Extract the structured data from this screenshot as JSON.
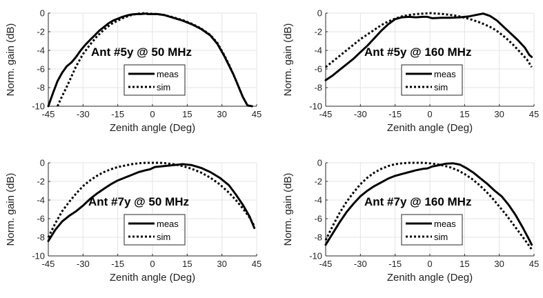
{
  "chart_data": [
    {
      "type": "line",
      "title": "",
      "annotation": "Ant #5y @ 50 MHz",
      "xlabel": "Zenith angle (Deg)",
      "ylabel": "Norm. gain (dB)",
      "xlim": [
        -45,
        45
      ],
      "ylim": [
        -10,
        0
      ],
      "xticks": [
        -45,
        -30,
        -15,
        0,
        15,
        30,
        45
      ],
      "yticks": [
        0,
        -2,
        -4,
        -6,
        -8,
        -10
      ],
      "grid": true,
      "legend": "center",
      "series": [
        {
          "name": "meas",
          "style": "solid",
          "x": [
            -45,
            -43,
            -41,
            -39,
            -37,
            -35,
            -33,
            -31,
            -29,
            -27,
            -25,
            -23,
            -21,
            -19,
            -17,
            -15,
            -13,
            -11,
            -9,
            -7,
            -5,
            -3,
            -2,
            2,
            5,
            9,
            13,
            17,
            21,
            25,
            28,
            31,
            33,
            35,
            37,
            39,
            41,
            43
          ],
          "y": [
            -10,
            -8.6,
            -7.3,
            -6.4,
            -5.7,
            -5.3,
            -4.7,
            -4.0,
            -3.4,
            -2.9,
            -2.4,
            -1.9,
            -1.5,
            -1.1,
            -0.8,
            -0.6,
            -0.4,
            -0.25,
            -0.15,
            -0.1,
            -0.1,
            -0.05,
            -0.1,
            -0.1,
            -0.2,
            -0.5,
            -0.8,
            -1.2,
            -1.7,
            -2.4,
            -3.3,
            -4.6,
            -5.6,
            -6.6,
            -7.8,
            -9.0,
            -9.9,
            -10
          ]
        },
        {
          "name": "sim",
          "style": "dotted",
          "x": [
            -41,
            -39,
            -37,
            -35,
            -33,
            -30,
            -27,
            -24,
            -21,
            -18,
            -15,
            -12,
            -9,
            -6,
            -3,
            -2,
            2,
            5,
            9,
            13,
            17,
            21,
            25,
            28,
            31,
            33,
            35,
            37,
            39,
            41,
            42
          ],
          "y": [
            -10,
            -8.9,
            -7.9,
            -6.8,
            -5.7,
            -4.4,
            -3.4,
            -2.5,
            -1.8,
            -1.2,
            -0.8,
            -0.45,
            -0.2,
            -0.05,
            0,
            -0.05,
            -0.1,
            -0.2,
            -0.45,
            -0.75,
            -1.15,
            -1.65,
            -2.35,
            -3.2,
            -4.5,
            -5.5,
            -6.6,
            -7.8,
            -9.0,
            -9.9,
            -10
          ]
        }
      ]
    },
    {
      "type": "line",
      "title": "",
      "annotation": "Ant #5y @ 160 MHz",
      "xlabel": "Zenith angle (Deg)",
      "ylabel": "Norm. gain (dB)",
      "xlim": [
        -45,
        45
      ],
      "ylim": [
        -10,
        0
      ],
      "xticks": [
        -45,
        -30,
        -15,
        0,
        15,
        30,
        45
      ],
      "yticks": [
        0,
        -2,
        -4,
        -6,
        -8,
        -10
      ],
      "grid": true,
      "legend": "center",
      "series": [
        {
          "name": "meas",
          "style": "solid",
          "x": [
            -45,
            -42,
            -39,
            -36,
            -33,
            -30,
            -27,
            -24,
            -21,
            -18,
            -15,
            -12,
            -9,
            -6,
            -3,
            -1,
            1,
            5,
            9,
            13,
            17,
            20,
            23,
            26,
            29,
            32,
            35,
            38,
            41,
            43,
            44
          ],
          "y": [
            -7.2,
            -6.7,
            -6.1,
            -5.5,
            -4.9,
            -4.2,
            -3.5,
            -2.7,
            -1.9,
            -1.2,
            -0.65,
            -0.45,
            -0.4,
            -0.45,
            -0.4,
            -0.4,
            -0.55,
            -0.5,
            -0.5,
            -0.45,
            -0.35,
            -0.2,
            -0.05,
            -0.3,
            -0.8,
            -1.5,
            -2.2,
            -2.9,
            -3.7,
            -4.5,
            -4.7
          ]
        },
        {
          "name": "sim",
          "style": "dotted",
          "x": [
            -45,
            -42,
            -39,
            -36,
            -33,
            -30,
            -27,
            -24,
            -21,
            -18,
            -15,
            -12,
            -9,
            -6,
            -3,
            0,
            3,
            6,
            9,
            12,
            15,
            18,
            21,
            24,
            27,
            30,
            33,
            36,
            39,
            42,
            44
          ],
          "y": [
            -5.8,
            -5.2,
            -4.6,
            -4.0,
            -3.4,
            -2.8,
            -2.3,
            -1.8,
            -1.3,
            -0.9,
            -0.6,
            -0.35,
            -0.2,
            -0.1,
            -0.05,
            0,
            -0.05,
            -0.1,
            -0.2,
            -0.3,
            -0.5,
            -0.7,
            -0.95,
            -1.25,
            -1.6,
            -2.1,
            -2.7,
            -3.4,
            -4.2,
            -5.0,
            -5.8
          ]
        }
      ]
    },
    {
      "type": "line",
      "title": "",
      "annotation": "Ant #7y @ 50 MHz",
      "xlabel": "Zenith angle (Deg)",
      "ylabel": "Norm. gain (dB)",
      "xlim": [
        -45,
        45
      ],
      "ylim": [
        -10,
        0
      ],
      "xticks": [
        -45,
        -30,
        -15,
        0,
        15,
        30,
        45
      ],
      "yticks": [
        0,
        -2,
        -4,
        -6,
        -8,
        -10
      ],
      "grid": true,
      "legend": "center",
      "series": [
        {
          "name": "meas",
          "style": "solid",
          "x": [
            -45,
            -42,
            -39,
            -36,
            -33,
            -30,
            -27,
            -24,
            -21,
            -18,
            -15,
            -12,
            -9,
            -6,
            -3,
            -1,
            1,
            5,
            9,
            13,
            17,
            21,
            25,
            29,
            33,
            36,
            39,
            42,
            44
          ],
          "y": [
            -8.4,
            -7.2,
            -6.3,
            -5.7,
            -5.2,
            -4.6,
            -3.9,
            -3.3,
            -2.8,
            -2.3,
            -1.9,
            -1.6,
            -1.3,
            -1.0,
            -0.8,
            -0.7,
            -0.45,
            -0.35,
            -0.25,
            -0.15,
            -0.25,
            -0.55,
            -1.0,
            -1.6,
            -2.4,
            -3.4,
            -4.5,
            -5.8,
            -7.0
          ]
        },
        {
          "name": "sim",
          "style": "dotted",
          "x": [
            -45,
            -42,
            -39,
            -36,
            -33,
            -30,
            -27,
            -24,
            -21,
            -18,
            -15,
            -12,
            -9,
            -6,
            -3,
            0,
            3,
            6,
            9,
            13,
            17,
            21,
            25,
            29,
            33,
            36,
            39,
            42,
            44
          ],
          "y": [
            -8.0,
            -6.5,
            -5.2,
            -4.2,
            -3.3,
            -2.5,
            -1.9,
            -1.4,
            -1.0,
            -0.7,
            -0.45,
            -0.3,
            -0.15,
            -0.05,
            0,
            0,
            0,
            -0.05,
            -0.15,
            -0.35,
            -0.65,
            -1.05,
            -1.6,
            -2.3,
            -3.2,
            -4.0,
            -4.9,
            -5.9,
            -6.8
          ]
        }
      ]
    },
    {
      "type": "line",
      "title": "",
      "annotation": "Ant #7y @ 160 MHz",
      "xlabel": "Zenith angle (Deg)",
      "ylabel": "Norm. gain (dB)",
      "xlim": [
        -45,
        45
      ],
      "ylim": [
        -10,
        0
      ],
      "xticks": [
        -45,
        -30,
        -15,
        0,
        15,
        30,
        45
      ],
      "yticks": [
        0,
        -2,
        -4,
        -6,
        -8,
        -10
      ],
      "grid": true,
      "legend": "center",
      "series": [
        {
          "name": "meas",
          "style": "solid",
          "x": [
            -45,
            -42,
            -39,
            -36,
            -33,
            -30,
            -27,
            -24,
            -21,
            -18,
            -15,
            -12,
            -9,
            -6,
            -3,
            -1,
            1,
            4,
            7,
            10,
            13,
            16,
            19,
            22,
            25,
            28,
            31,
            34,
            37,
            40,
            43,
            44
          ],
          "y": [
            -8.8,
            -7.6,
            -6.4,
            -5.3,
            -4.4,
            -3.6,
            -3.0,
            -2.5,
            -2.1,
            -1.7,
            -1.4,
            -1.2,
            -1.0,
            -0.8,
            -0.65,
            -0.6,
            -0.4,
            -0.25,
            -0.1,
            -0.05,
            -0.2,
            -0.6,
            -1.1,
            -1.7,
            -2.3,
            -3.0,
            -3.6,
            -4.5,
            -5.6,
            -6.9,
            -8.3,
            -8.8
          ]
        },
        {
          "name": "sim",
          "style": "dotted",
          "x": [
            -45,
            -42,
            -39,
            -36,
            -33,
            -30,
            -27,
            -24,
            -21,
            -18,
            -15,
            -12,
            -9,
            -6,
            -3,
            0,
            3,
            6,
            9,
            12,
            15,
            18,
            21,
            24,
            27,
            30,
            33,
            36,
            39,
            42,
            44
          ],
          "y": [
            -8.3,
            -6.8,
            -5.4,
            -4.2,
            -3.2,
            -2.3,
            -1.6,
            -1.05,
            -0.65,
            -0.35,
            -0.15,
            -0.05,
            0,
            0,
            0,
            -0.05,
            -0.15,
            -0.3,
            -0.5,
            -0.8,
            -1.2,
            -1.7,
            -2.3,
            -3.0,
            -3.8,
            -4.7,
            -5.6,
            -6.6,
            -7.6,
            -8.6,
            -9.3
          ]
        }
      ]
    }
  ]
}
